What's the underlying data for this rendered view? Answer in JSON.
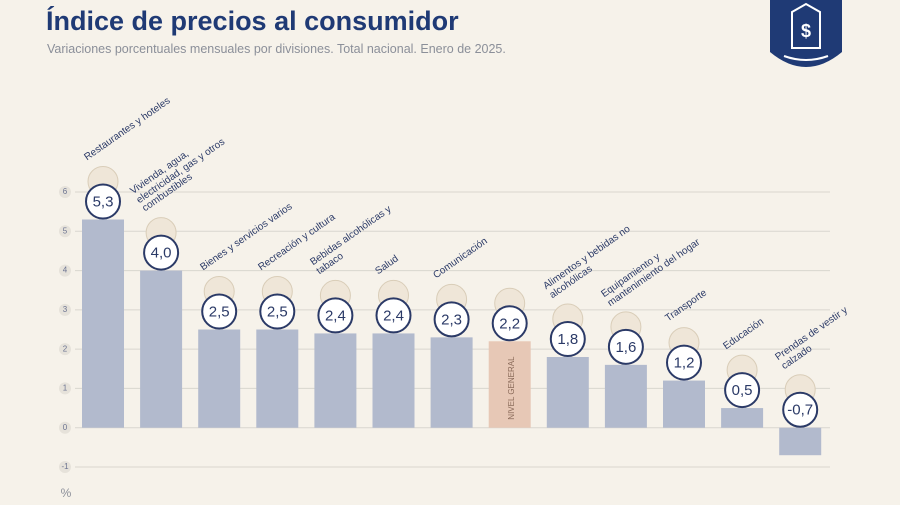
{
  "chart_data": {
    "type": "bar",
    "title": "Índice de precios al consumidor",
    "subtitle": "Variaciones porcentuales mensuales por divisiones. Total nacional. Enero de 2025.",
    "y_axis_label": "%",
    "categories": [
      "Restaurantes y hoteles",
      "Vivienda, agua, electricidad, gas y otros combustibles",
      "Bienes y servicios varios",
      "Recreación y cultura",
      "Bebidas alcohólicas y tabaco",
      "Salud",
      "Comunicación",
      "NIVEL GENERAL",
      "Alimentos y bebidas no alcohólicas",
      "Equipamiento y mantenimiento del hogar",
      "Transporte",
      "Educación",
      "Prendas de vestir y calzado"
    ],
    "values": [
      5.3,
      4.0,
      2.5,
      2.5,
      2.4,
      2.4,
      2.3,
      2.2,
      1.8,
      1.6,
      1.2,
      0.5,
      -0.7
    ],
    "value_labels": [
      "5,3",
      "4,0",
      "2,5",
      "2,5",
      "2,4",
      "2,4",
      "2,3",
      "2,2",
      "1,8",
      "1,6",
      "1,2",
      "0,5",
      "-0,7"
    ],
    "colors": [
      "#b2bacd",
      "#b2bacd",
      "#b2bacd",
      "#b2bacd",
      "#b2bacd",
      "#b2bacd",
      "#b2bacd",
      "#e7c8b6",
      "#b2bacd",
      "#b2bacd",
      "#b2bacd",
      "#b2bacd",
      "#b2bacd"
    ],
    "ylim": [
      -1,
      6
    ],
    "yticks": [
      -1,
      0,
      1,
      2,
      3,
      4,
      5,
      6
    ],
    "grid": true
  }
}
